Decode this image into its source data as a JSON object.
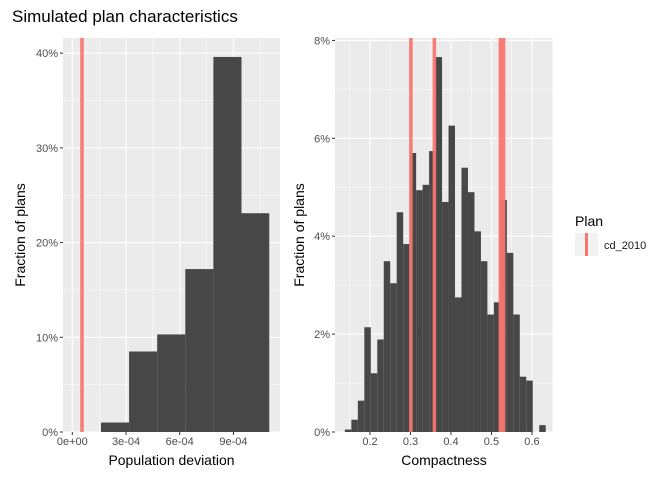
{
  "title": "Simulated plan characteristics",
  "colors": {
    "panel": "#EBEBEB",
    "bar": "#474747",
    "line": "#F8766D",
    "grid": "#FFFFFF"
  },
  "legend": {
    "title": "Plan",
    "entries": [
      "cd_2010"
    ],
    "placement": "right"
  },
  "chart_data": [
    {
      "type": "bar",
      "subtype": "histogram",
      "xlabel": "Population deviation",
      "ylabel": "Fraction of plans",
      "xlim": [
        -5.2e-05,
        0.00116
      ],
      "ylim": [
        0,
        0.416
      ],
      "x_ticks": [
        0,
        0.0003,
        0.0006,
        0.0009
      ],
      "x_tick_labels": [
        "0e+00",
        "3e-04",
        "6e-04",
        "9e-04"
      ],
      "y_ticks": [
        0,
        0.1,
        0.2,
        0.3,
        0.4
      ],
      "y_tick_labels": [
        "0%",
        "10%",
        "20%",
        "30%",
        "40%"
      ],
      "bin_edges": [
        0.00016,
        0.000317,
        0.000474,
        0.000631,
        0.000788,
        0.000945,
        0.0011
      ],
      "values": [
        0.01,
        0.085,
        0.103,
        0.172,
        0.396,
        0.231
      ],
      "reference_lines": [
        {
          "name": "cd_2010",
          "x": 5.4e-05
        }
      ],
      "grid": true
    },
    {
      "type": "bar",
      "subtype": "histogram",
      "xlabel": "Compactness",
      "ylabel": "Fraction of plans",
      "xlim": [
        0.1136,
        0.652
      ],
      "ylim": [
        0,
        0.0805
      ],
      "x_ticks": [
        0.2,
        0.3,
        0.4,
        0.5,
        0.6
      ],
      "x_tick_labels": [
        "0.2",
        "0.3",
        "0.4",
        "0.5",
        "0.6"
      ],
      "y_ticks": [
        0,
        0.02,
        0.04,
        0.06,
        0.08
      ],
      "y_tick_labels": [
        "0%",
        "2%",
        "4%",
        "6%",
        "8%"
      ],
      "bin_start": 0.138,
      "bin_width": 0.016,
      "values": [
        0.0005,
        0.0025,
        0.0064,
        0.0214,
        0.012,
        0.0189,
        0.0349,
        0.0304,
        0.0449,
        0.0384,
        0.057,
        0.0494,
        0.0505,
        0.0574,
        0.0766,
        0.047,
        0.0626,
        0.0275,
        0.054,
        0.049,
        0.041,
        0.0349,
        0.024,
        0.0265,
        0.0474,
        0.0366,
        0.024,
        0.0113,
        0.0105,
        0,
        0.0014
      ],
      "reference_lines": [
        {
          "name": "cd_2010",
          "x": 0.301
        },
        {
          "name": "cd_2010",
          "x": 0.359
        },
        {
          "name": "cd_2010",
          "x": 0.522
        },
        {
          "name": "cd_2010",
          "x": 0.53
        }
      ],
      "grid": true
    }
  ]
}
